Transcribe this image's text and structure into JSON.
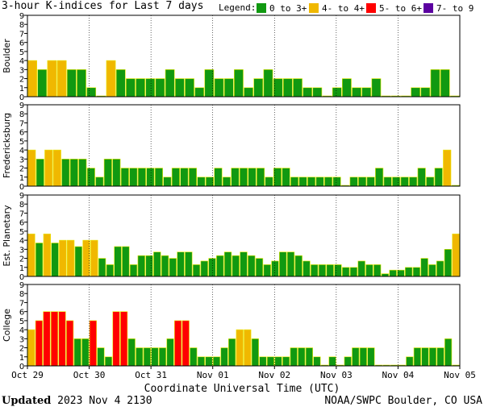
{
  "title": "3-hour K-indices for Last 7 days",
  "legend": {
    "label": "Legend:",
    "items": [
      {
        "label": "0 to 3+",
        "color": "#119911"
      },
      {
        "label": "4- to 4+",
        "color": "#f0b800"
      },
      {
        "label": "5- to 6+",
        "color": "#ff0000"
      },
      {
        "label": "7- to 9",
        "color": "#5b00a0"
      }
    ]
  },
  "footer": {
    "updated_label": "Updated",
    "timestamp": "2023 Nov  4 2130",
    "source": "NOAA/SWPC Boulder, CO USA"
  },
  "chart_data": [
    {
      "type": "bar",
      "ylabel": "Boulder",
      "ylim": [
        0,
        9
      ],
      "x_ticks": [
        "Oct 29",
        "Oct 30",
        "Oct 31",
        "Nov 01",
        "Nov 02",
        "Nov 03",
        "Nov 04",
        "Nov 05"
      ],
      "xlabel": "Coordinate Universal Time (UTC)",
      "values": [
        4,
        3,
        4,
        4,
        3,
        3,
        1,
        0,
        4,
        3,
        2,
        2,
        2,
        2,
        3,
        2,
        2,
        1,
        3,
        2,
        2,
        3,
        1,
        2,
        3,
        2,
        2,
        2,
        1,
        1,
        0,
        1,
        2,
        1,
        1,
        2,
        0,
        0,
        0,
        1,
        1,
        3,
        3,
        0
      ]
    },
    {
      "type": "bar",
      "ylabel": "Fredericksburg",
      "ylim": [
        0,
        9
      ],
      "values": [
        4,
        3,
        4,
        4,
        3,
        3,
        3,
        2,
        1,
        3,
        3,
        2,
        2,
        2,
        2,
        2,
        1,
        2,
        2,
        2,
        1,
        1,
        2,
        1,
        2,
        2,
        2,
        2,
        1,
        2,
        2,
        1,
        1,
        1,
        1,
        1,
        1,
        0,
        1,
        1,
        1,
        2,
        1,
        1,
        1,
        1,
        2,
        1,
        2,
        4,
        0
      ]
    },
    {
      "type": "bar",
      "ylabel": "Est. Planetary",
      "ylim": [
        0,
        9
      ],
      "values": [
        4.7,
        3.7,
        4.7,
        3.7,
        4,
        4,
        3.3,
        4,
        4,
        2,
        1.3,
        3.3,
        3.3,
        1.3,
        2.3,
        2.3,
        2.7,
        2.3,
        2,
        2.7,
        2.7,
        1.3,
        1.7,
        2,
        2.3,
        2.7,
        2.3,
        2.7,
        2.3,
        2,
        1.3,
        1.7,
        2.7,
        2.7,
        2.3,
        1.7,
        1.3,
        1.3,
        1.3,
        1.3,
        1,
        1,
        1.7,
        1.3,
        1.3,
        0.3,
        0.7,
        0.7,
        1,
        1,
        2,
        1.3,
        1.7,
        3,
        4.7
      ]
    },
    {
      "type": "bar",
      "ylabel": "College",
      "ylim": [
        0,
        9
      ],
      "values": [
        4,
        5,
        6,
        6,
        6,
        5,
        3,
        3,
        5,
        2,
        1,
        6,
        6,
        3,
        2,
        2,
        2,
        2,
        3,
        5,
        5,
        2,
        1,
        1,
        1,
        2,
        3,
        4,
        4,
        3,
        1,
        1,
        1,
        1,
        2,
        2,
        2,
        1,
        0,
        1,
        0,
        1,
        2,
        2,
        2,
        0,
        0,
        0,
        0,
        1,
        2,
        2,
        2,
        2,
        3,
        0
      ]
    }
  ]
}
